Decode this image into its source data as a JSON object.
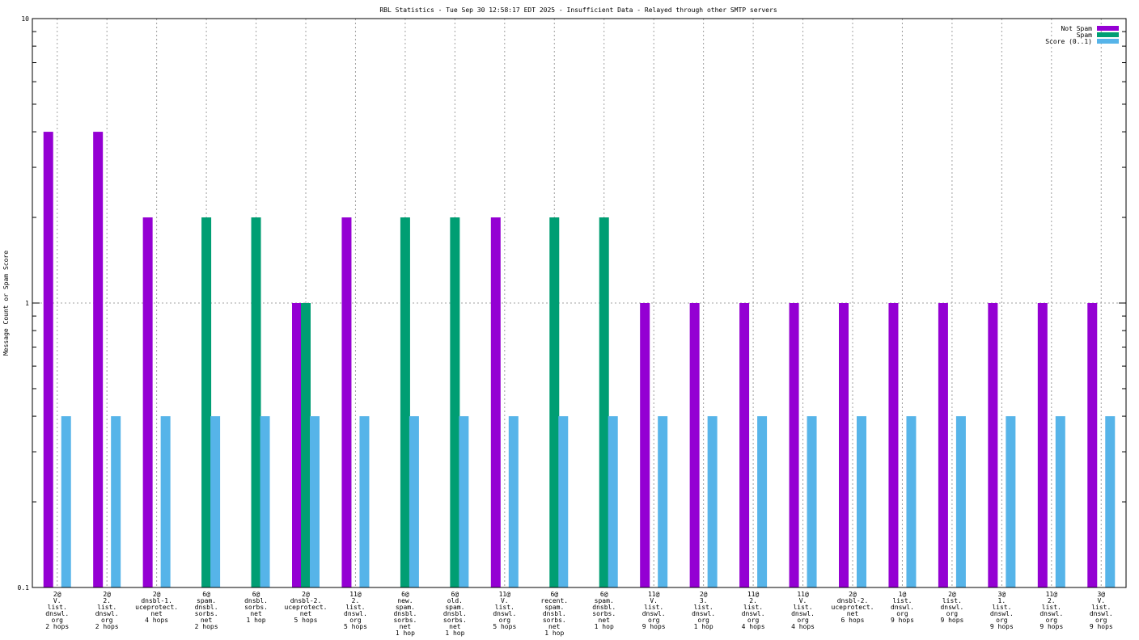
{
  "chart_data": {
    "type": "bar",
    "title": "RBL Statistics - Tue Sep 30 12:58:17 EDT 2025 - Insufficient Data - Relayed through other SMTP servers",
    "ylabel": "Message Count or Spam Score",
    "xlabel": "",
    "yscale": "log",
    "ylim": [
      0.1,
      10
    ],
    "yticks": [
      {
        "value": 0.1,
        "label": "0.1"
      },
      {
        "value": 1,
        "label": "1"
      },
      {
        "value": 10,
        "label": "10"
      }
    ],
    "grid": "on (dotted, vertical per category and horizontal at 1)",
    "legend_position": "top-right",
    "categories": [
      [
        "2@",
        "V.",
        "list.",
        "dnswl.",
        "org",
        "2 hops"
      ],
      [
        "2@",
        "2.",
        "list.",
        "dnswl.",
        "org",
        "2 hops"
      ],
      [
        "2@",
        "dnsbl-1.",
        "uceprotect.",
        "net",
        "4 hops"
      ],
      [
        "6@",
        "spam.",
        "dnsbl.",
        "sorbs.",
        "net",
        "2 hops"
      ],
      [
        "6@",
        "dnsbl.",
        "sorbs.",
        "net",
        "1 hop"
      ],
      [
        "2@",
        "dnsbl-2.",
        "uceprotect.",
        "net",
        "5 hops"
      ],
      [
        "11@",
        "2.",
        "list.",
        "dnswl.",
        "org",
        "5 hops"
      ],
      [
        "6@",
        "new.",
        "spam.",
        "dnsbl.",
        "sorbs.",
        "net",
        "1 hop"
      ],
      [
        "6@",
        "old.",
        "spam.",
        "dnsbl.",
        "sorbs.",
        "net",
        "1 hop"
      ],
      [
        "11@",
        "V.",
        "list.",
        "dnswl.",
        "org",
        "5 hops"
      ],
      [
        "6@",
        "recent.",
        "spam.",
        "dnsbl.",
        "sorbs.",
        "net",
        "1 hop"
      ],
      [
        "6@",
        "spam.",
        "dnsbl.",
        "sorbs.",
        "net",
        "1 hop"
      ],
      [
        "11@",
        "V.",
        "list.",
        "dnswl.",
        "org",
        "9 hops"
      ],
      [
        "2@",
        "3.",
        "list.",
        "dnswl.",
        "org",
        "1 hop"
      ],
      [
        "11@",
        "2.",
        "list.",
        "dnswl.",
        "org",
        "4 hops"
      ],
      [
        "11@",
        "V.",
        "list.",
        "dnswl.",
        "org",
        "4 hops"
      ],
      [
        "2@",
        "dnsbl-2.",
        "uceprotect.",
        "net",
        "6 hops"
      ],
      [
        "1@",
        "list.",
        "dnswl.",
        "org",
        "9 hops"
      ],
      [
        "2@",
        "list.",
        "dnswl.",
        "org",
        "9 hops"
      ],
      [
        "3@",
        "1.",
        "list.",
        "dnswl.",
        "org",
        "9 hops"
      ],
      [
        "11@",
        "2.",
        "list.",
        "dnswl.",
        "org",
        "9 hops"
      ],
      [
        "3@",
        "V.",
        "list.",
        "dnswl.",
        "org",
        "9 hops"
      ]
    ],
    "series": [
      {
        "name": "Not Spam",
        "color": "#9400d3",
        "values": [
          4,
          4,
          2,
          null,
          null,
          1,
          2,
          null,
          null,
          2,
          null,
          null,
          1,
          1,
          1,
          1,
          1,
          1,
          1,
          1,
          1,
          1
        ]
      },
      {
        "name": "Spam",
        "color": "#009e73",
        "values": [
          null,
          null,
          null,
          2,
          2,
          1,
          null,
          2,
          2,
          null,
          2,
          2,
          null,
          null,
          null,
          null,
          null,
          null,
          null,
          null,
          null,
          null
        ]
      },
      {
        "name": "Score (0..1)",
        "color": "#56b4e9",
        "values": [
          0.4,
          0.4,
          0.4,
          0.4,
          0.4,
          0.4,
          0.4,
          0.4,
          0.4,
          0.4,
          0.4,
          0.4,
          0.4,
          0.4,
          0.4,
          0.4,
          0.4,
          0.4,
          0.4,
          0.4,
          0.4,
          0.4
        ]
      }
    ]
  }
}
